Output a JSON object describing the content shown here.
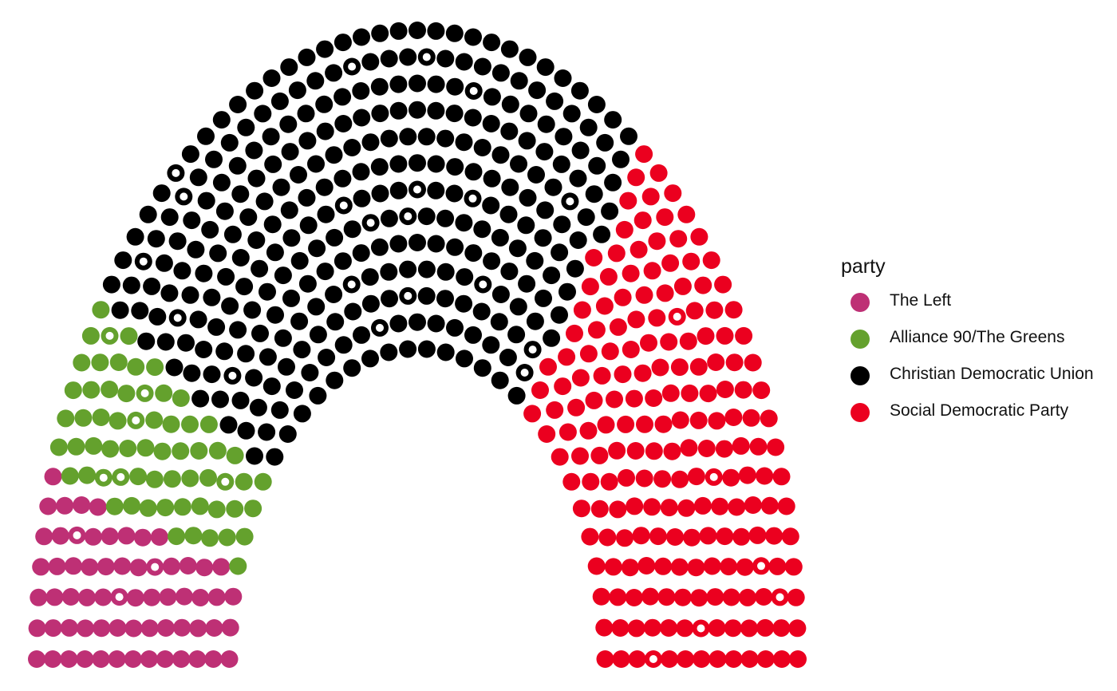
{
  "chart_data": {
    "type": "parliament",
    "legend_title": "party",
    "legend_position": "right",
    "parties": [
      {
        "name": "The Left",
        "seats": 64,
        "color": "#BE3075"
      },
      {
        "name": "Alliance 90/The Greens",
        "seats": 63,
        "color": "#64A12D"
      },
      {
        "name": "Christian Democratic Union",
        "seats": 311,
        "color": "#000000"
      },
      {
        "name": "Social Democratic Party",
        "seats": 193,
        "color": "#EB001F"
      }
    ],
    "total_seats": 631,
    "rows": 13,
    "hollow_seats": 35
  }
}
